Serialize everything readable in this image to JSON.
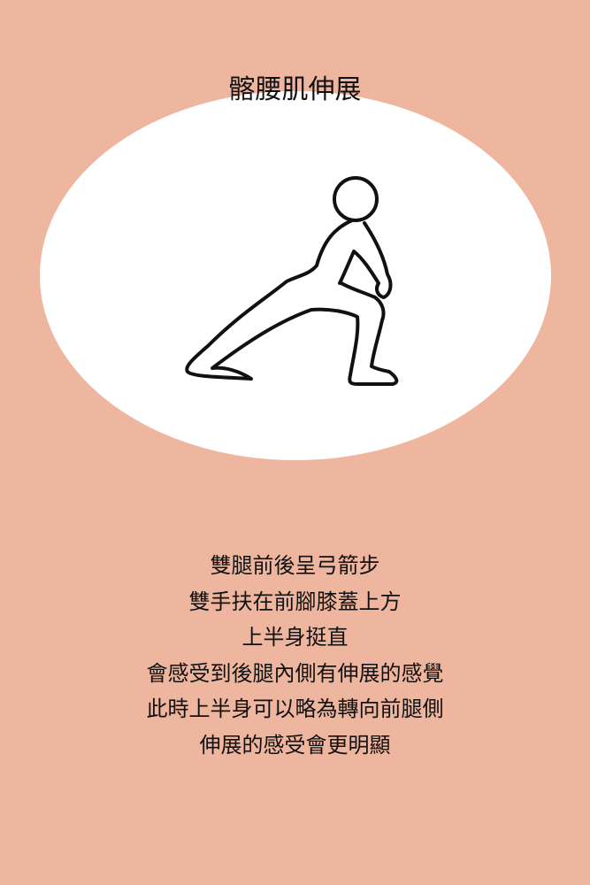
{
  "title": "髂腰肌伸展",
  "illustration": "stretching-figure-icon",
  "instructions": [
    "雙腿前後呈弓箭步",
    "雙手扶在前腳膝蓋上方",
    "上半身挺直",
    "會感受到後腿內側有伸展的感覺",
    "此時上半身可以略為轉向前腿側",
    "伸展的感受會更明顯"
  ],
  "colors": {
    "background": "#efb69f",
    "ellipse": "#ffffff",
    "line": "#111111"
  }
}
